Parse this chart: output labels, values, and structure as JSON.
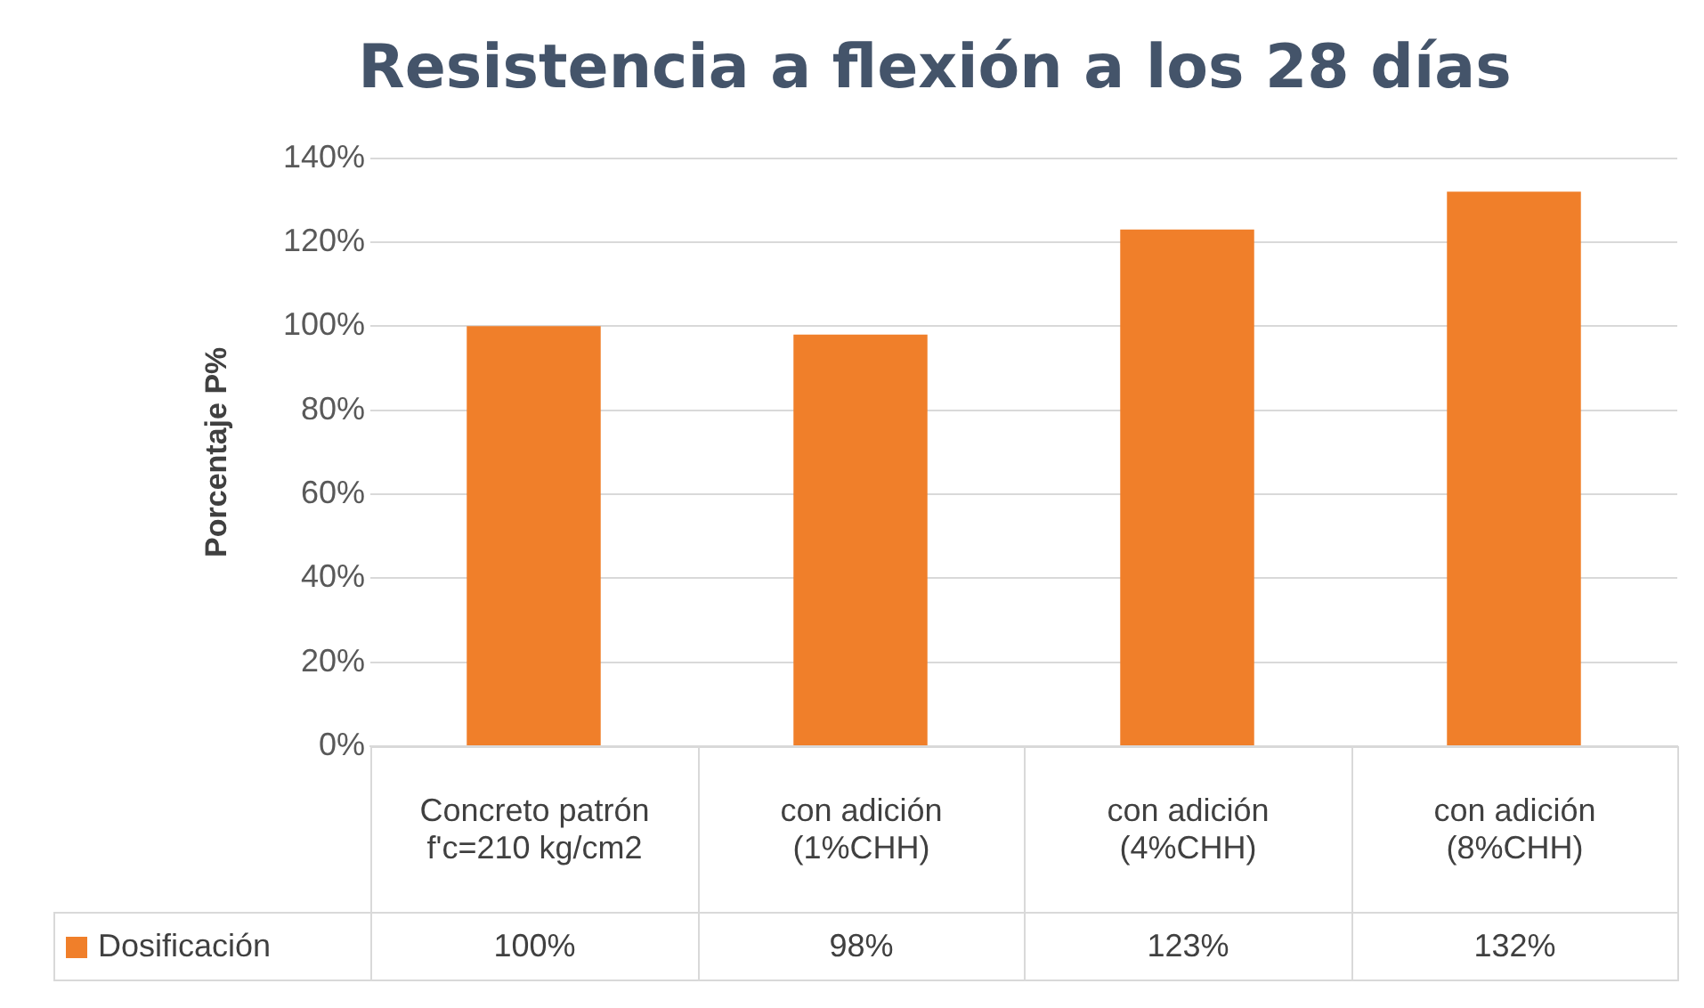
{
  "chart_data": {
    "type": "bar",
    "title": "Resistencia a flexión a los 28 días",
    "ylabel": "Porcentaje P%",
    "categories": [
      "Concreto patrón f'c=210 kg/cm2",
      "con adición (1%CHH)",
      "con adición (4%CHH)",
      "con adición (8%CHH)"
    ],
    "series": [
      {
        "name": "Dosificación",
        "color": "#f07f2a",
        "values": [
          100,
          98,
          123,
          132
        ],
        "value_labels": [
          "100%",
          "98%",
          "123%",
          "132%"
        ]
      }
    ],
    "ylim": [
      0,
      140
    ],
    "yticks": [
      {
        "value": 0,
        "label": "0%"
      },
      {
        "value": 20,
        "label": "20%"
      },
      {
        "value": 40,
        "label": "40%"
      },
      {
        "value": 60,
        "label": "60%"
      },
      {
        "value": 80,
        "label": "80%"
      },
      {
        "value": 100,
        "label": "100%"
      },
      {
        "value": 120,
        "label": "120%"
      },
      {
        "value": 140,
        "label": "140%"
      }
    ],
    "grid": "y",
    "legend": "bottom"
  }
}
